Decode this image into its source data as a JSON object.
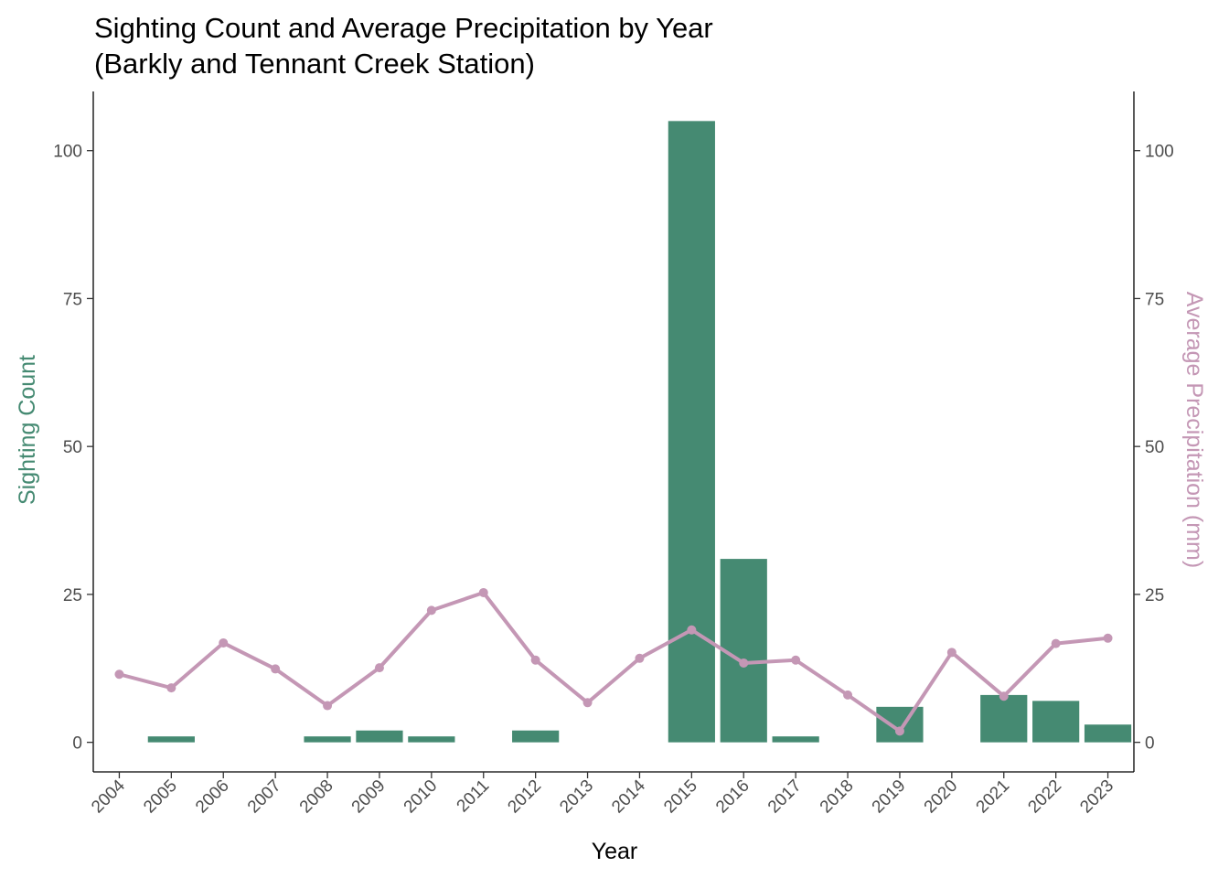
{
  "chart_data": {
    "type": "bar+line",
    "title_line1": "Sighting Count and Average Precipitation by Year",
    "title_line2": "(Barkly and Tennant Creek Station)",
    "xlabel": "Year",
    "ylabel_left": "Sighting Count",
    "ylabel_right": "Average Precipitation (mm)",
    "ylim": [
      -5,
      110
    ],
    "yticks": [
      0,
      25,
      50,
      75,
      100
    ],
    "grid": false,
    "colors": {
      "bars": "#458a72",
      "line": "#c497b5",
      "left_label": "#458a72",
      "right_label": "#c497b5"
    },
    "categories": [
      "2004",
      "2005",
      "2006",
      "2007",
      "2008",
      "2009",
      "2010",
      "2011",
      "2012",
      "2013",
      "2014",
      "2015",
      "2016",
      "2017",
      "2018",
      "2019",
      "2020",
      "2021",
      "2022",
      "2023"
    ],
    "series": [
      {
        "name": "Sighting Count",
        "type": "bar",
        "axis": "left",
        "values": [
          0,
          1,
          0,
          0,
          1,
          2,
          1,
          0,
          2,
          0,
          0,
          105,
          31,
          1,
          0,
          6,
          0,
          8,
          7,
          3
        ]
      },
      {
        "name": "Average Precipitation (mm)",
        "type": "line",
        "axis": "right",
        "values": [
          11.5,
          9.2,
          16.8,
          12.4,
          6.2,
          12.6,
          22.3,
          25.3,
          13.9,
          6.7,
          14.2,
          19.0,
          13.4,
          13.9,
          8.0,
          1.9,
          15.2,
          7.8,
          16.7,
          17.6
        ]
      }
    ]
  }
}
